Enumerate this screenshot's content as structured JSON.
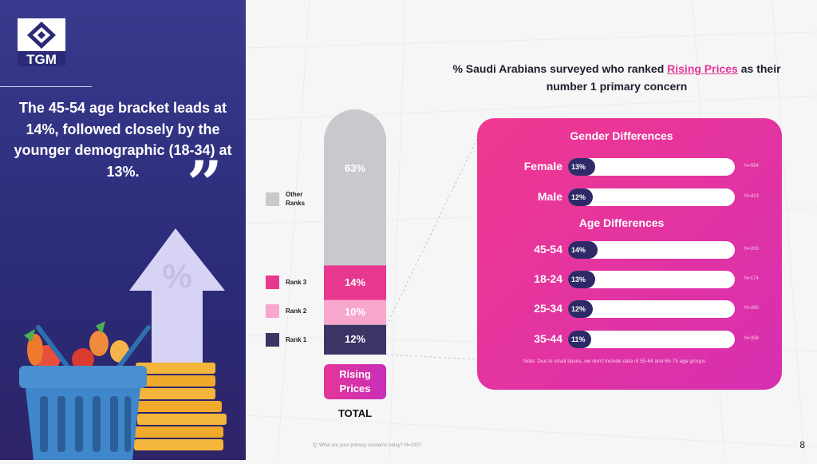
{
  "brand": {
    "name": "TGM"
  },
  "quote": {
    "text": "The 45-54 age bracket leads at 14%, followed closely by the younger demographic (18-34) at 13%.",
    "mark": "”"
  },
  "illustration": {
    "symbol": "%"
  },
  "title": {
    "before": "% Saudi Arabians surveyed who ranked ",
    "highlight": "Rising Prices",
    "after": " as their number 1 primary concern"
  },
  "chart_data": [
    {
      "type": "bar",
      "subtype": "stacked",
      "categories": [
        "TOTAL"
      ],
      "series": [
        {
          "name": "Rank 1",
          "values": [
            12
          ],
          "label": "12%",
          "color": "#3a3565"
        },
        {
          "name": "Rank 2",
          "values": [
            10
          ],
          "label": "10%",
          "color": "#f7a7cc"
        },
        {
          "name": "Rank 3",
          "values": [
            14
          ],
          "label": "14%",
          "color": "#e7378f"
        },
        {
          "name": "Other Ranks",
          "values": [
            63
          ],
          "label": "63%",
          "color": "#c9c9cd"
        }
      ],
      "category_button": "Rising Prices",
      "xlabel": "TOTAL",
      "legend": [
        {
          "label": "Other\nRanks",
          "color": "#c9c9cd"
        },
        {
          "label": "Rank 3",
          "color": "#e7378f"
        },
        {
          "label": "Rank 2",
          "color": "#f7a7cc"
        },
        {
          "label": "Rank 1",
          "color": "#3a3565"
        }
      ]
    },
    {
      "type": "bar",
      "subtype": "horizontal",
      "title": "Gender Differences",
      "categories": [
        "Female",
        "Male"
      ],
      "values": [
        13,
        12
      ],
      "labels": [
        "13%",
        "12%"
      ],
      "bases": [
        "N=594",
        "N=413"
      ],
      "xlim": [
        0,
        100
      ]
    },
    {
      "type": "bar",
      "subtype": "horizontal",
      "title": "Age Differences",
      "categories": [
        "45-54",
        "18-24",
        "25-34",
        "35-44"
      ],
      "values": [
        14,
        13,
        12,
        11
      ],
      "labels": [
        "14%",
        "13%",
        "12%",
        "11%"
      ],
      "bases": [
        "N=200",
        "N=174",
        "N=280",
        "N=358"
      ],
      "xlim": [
        0,
        100
      ]
    }
  ],
  "note": "Note: Due to small bases, we don't include data of 55-64 and 65-75 age groups",
  "footnote": "Q: What are your primary concerns today? N=1007",
  "page_number": "8"
}
